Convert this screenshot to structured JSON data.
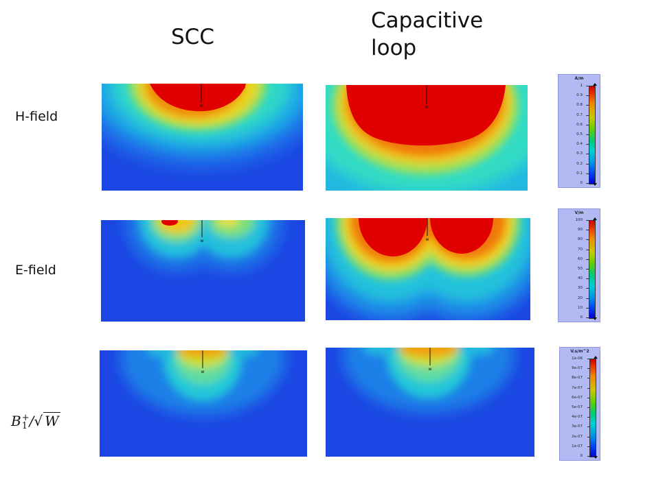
{
  "columns": {
    "scc": "SCC",
    "capacitive_loop": "Capacitive loop"
  },
  "rows": {
    "h_field": "H-field",
    "e_field": "E-field",
    "b1": {
      "base": "B",
      "sup": "+",
      "sub": "1",
      "slash": "/",
      "sqrt_arg": "W"
    }
  },
  "probe_label": "w",
  "colorbars": [
    {
      "unit": "A/m",
      "ticks": [
        "1",
        "0.9",
        "0.8",
        "0.7",
        "0.6",
        "0.5",
        "0.4",
        "0.3",
        "0.2",
        "0.1",
        "0"
      ]
    },
    {
      "unit": "V/m",
      "ticks": [
        "100",
        "90",
        "80",
        "70",
        "60",
        "50",
        "40",
        "30",
        "20",
        "10",
        "0"
      ]
    },
    {
      "unit": "V.s/m^2",
      "ticks": [
        "1e-06",
        "9e-07",
        "8e-07",
        "7e-07",
        "6e-07",
        "5e-07",
        "4e-07",
        "3e-07",
        "2e-07",
        "1e-07",
        "0"
      ]
    }
  ],
  "colors": {
    "background_field": "#1a3fe0",
    "max_field": "#e00000"
  }
}
